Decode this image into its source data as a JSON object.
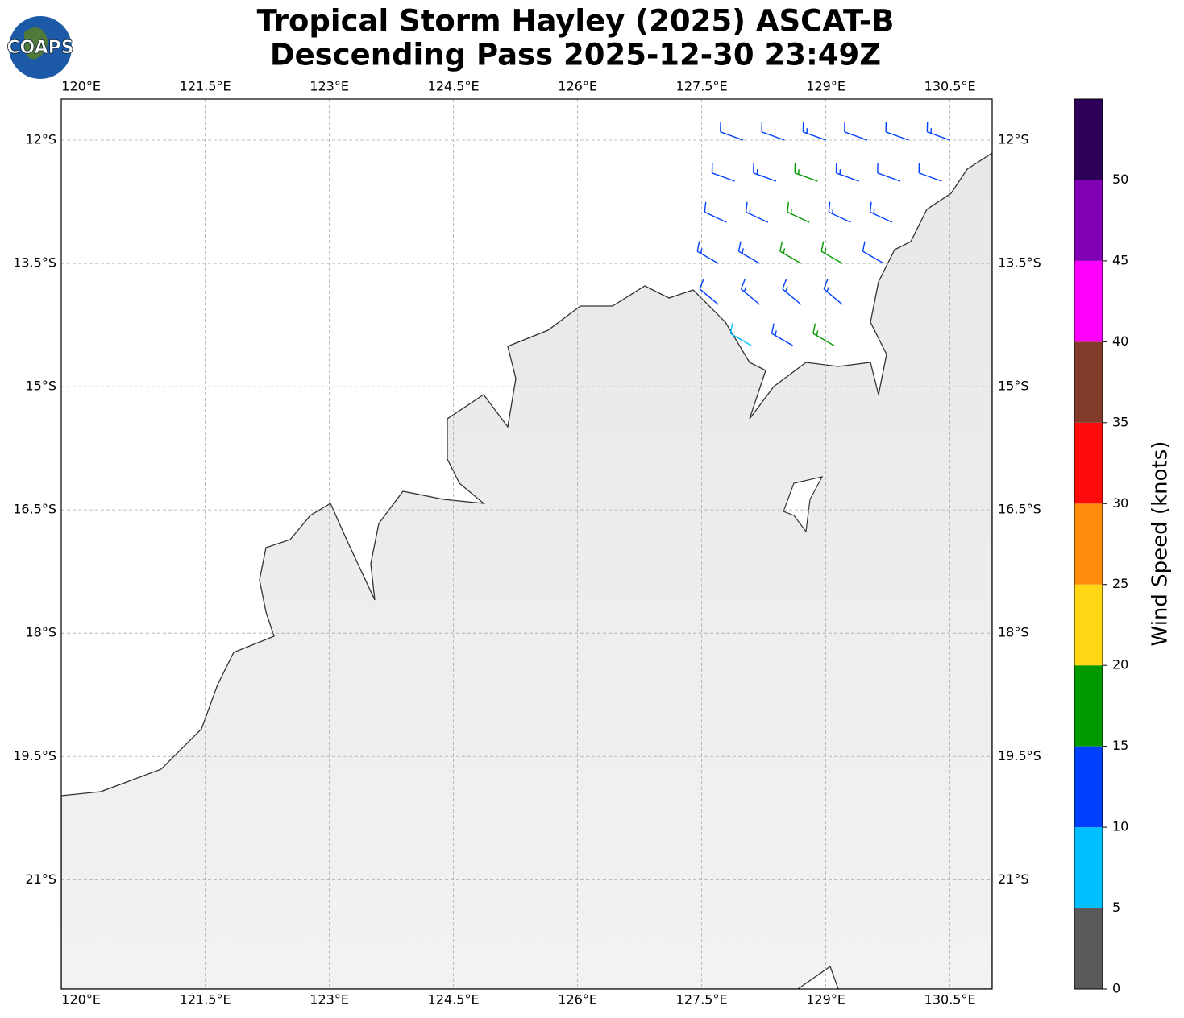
{
  "header": {
    "logo": "COAPS",
    "title": [
      "Tropical Storm Hayley (2025) ASCAT-B",
      "Descending Pass 2025-12-30 23:49Z"
    ]
  },
  "map": {
    "type": "wind-barbs",
    "lonlim": [
      119.76,
      131.01
    ],
    "latlim": [
      -22.33,
      -11.5
    ],
    "grid": true,
    "lon_ticks": [
      {
        "value": 120,
        "label": "120°E"
      },
      {
        "value": 121.5,
        "label": "121.5°E"
      },
      {
        "value": 123,
        "label": "123°E"
      },
      {
        "value": 124.5,
        "label": "124.5°E"
      },
      {
        "value": 126,
        "label": "126°E"
      },
      {
        "value": 127.5,
        "label": "127.5°E"
      },
      {
        "value": 129,
        "label": "129°E"
      },
      {
        "value": 130.5,
        "label": "130.5°E"
      }
    ],
    "lat_ticks": [
      {
        "value": -12,
        "label": "12°S"
      },
      {
        "value": -13.5,
        "label": "13.5°S"
      },
      {
        "value": -15,
        "label": "15°S"
      },
      {
        "value": -16.5,
        "label": "16.5°S"
      },
      {
        "value": -18,
        "label": "18°S"
      },
      {
        "value": -19.5,
        "label": "19.5°S"
      },
      {
        "value": -21,
        "label": "21°S"
      }
    ],
    "barbs": {
      "lon": [
        128.0,
        128.5,
        129.0,
        129.5,
        130.0,
        130.5,
        127.9,
        128.4,
        128.9,
        129.4,
        129.9,
        130.4,
        127.8,
        128.3,
        128.8,
        129.3,
        129.8,
        127.7,
        128.2,
        128.7,
        129.2,
        129.7,
        127.7,
        128.2,
        128.7,
        129.2,
        128.1,
        128.6,
        129.1
      ],
      "lat": [
        -12.0,
        -12.0,
        -12.0,
        -12.0,
        -12.0,
        -12.0,
        -12.5,
        -12.5,
        -12.5,
        -12.5,
        -12.5,
        -12.5,
        -13.0,
        -13.0,
        -13.0,
        -13.0,
        -13.0,
        -13.5,
        -13.5,
        -13.5,
        -13.5,
        -13.5,
        -14.0,
        -14.0,
        -14.0,
        -14.0,
        -14.5,
        -14.5,
        -14.5
      ],
      "speed": [
        12,
        12,
        13,
        12,
        11,
        14,
        12,
        13,
        16,
        13,
        12,
        11,
        12,
        13,
        16,
        14,
        13,
        13,
        14,
        17,
        17,
        12,
        12,
        13,
        13,
        14,
        8,
        13,
        16
      ],
      "dir": [
        290,
        290,
        290,
        290,
        290,
        290,
        290,
        290,
        290,
        290,
        290,
        290,
        295,
        295,
        295,
        295,
        295,
        300,
        300,
        300,
        300,
        300,
        310,
        310,
        310,
        310,
        300,
        300,
        300
      ]
    }
  },
  "colorbar": {
    "label": "Wind Speed (knots)",
    "lim": [
      0,
      55
    ],
    "bounds": [
      0,
      5,
      10,
      15,
      20,
      25,
      30,
      35,
      40,
      45,
      50,
      55
    ],
    "colors": [
      "#595959",
      "#00bfff",
      "#0040ff",
      "#009900",
      "#ffd714",
      "#ff8c0a",
      "#ff0a0a",
      "#833c2a",
      "#ff00ff",
      "#8000b4",
      "#2d005a"
    ],
    "ticks": [
      0,
      5,
      10,
      15,
      20,
      25,
      30,
      35,
      40,
      45,
      50
    ]
  }
}
